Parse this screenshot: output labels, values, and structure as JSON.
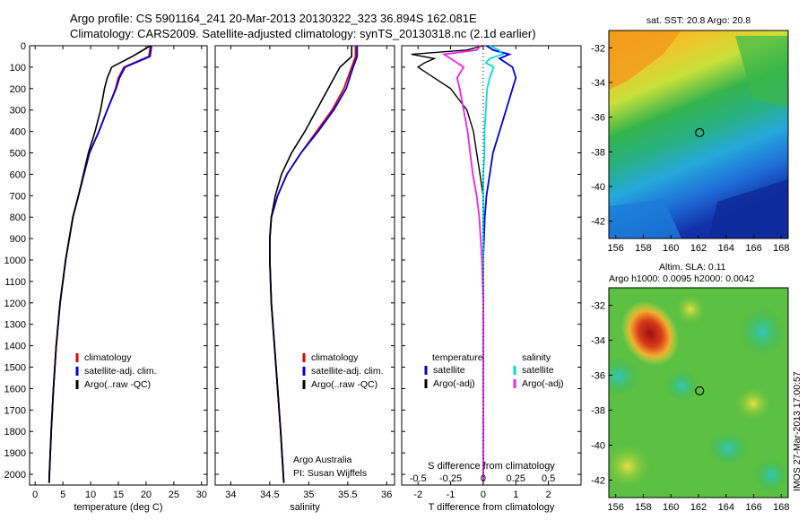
{
  "title_line1": "Argo profile: CS 5901164_241 20-Mar-2013 20130322_323 36.894S 162.081E",
  "title_line2": "Climatology: CARS2009. Satellite-adjusted climatology: synTS_20130318.nc (2.1d earlier)",
  "credit": {
    "line1": "Argo Australia",
    "line2": "PI: Susan Wijffels",
    "stamp": "IMOS 27-Mar-2013 17:00:57"
  },
  "colors": {
    "climatology": "#e00000",
    "satellite": "#0000dd",
    "argo": "#000000",
    "sal_sat": "#00dddd",
    "sal_argo": "#ee22ee"
  },
  "chart_data": [
    {
      "type": "line",
      "xlabel": "temperature (deg C)",
      "xlim": [
        -1,
        31
      ],
      "ylim": [
        0,
        2050
      ],
      "xticks": [
        0,
        5,
        10,
        15,
        20,
        25,
        30
      ],
      "yticks": [
        0,
        100,
        200,
        300,
        400,
        500,
        600,
        700,
        800,
        900,
        1000,
        1100,
        1200,
        1300,
        1400,
        1500,
        1600,
        1700,
        1800,
        1900,
        2000
      ],
      "legend": [
        "climatology",
        "satellite-adj. clim.",
        "Argo(..raw -QC)"
      ],
      "legend_placement": "lower-right",
      "depth": [
        0,
        50,
        100,
        150,
        200,
        300,
        400,
        500,
        600,
        700,
        800,
        1000,
        1200,
        1400,
        1600,
        1800,
        2040
      ],
      "series": [
        {
          "name": "climatology",
          "values": [
            20.8,
            20.5,
            16.0,
            15.0,
            14.5,
            13.0,
            11.5,
            9.8,
            8.8,
            7.8,
            6.8,
            5.5,
            4.5,
            3.8,
            3.3,
            2.9,
            2.5
          ]
        },
        {
          "name": "satellite-adj. clim.",
          "values": [
            21.0,
            20.7,
            16.2,
            15.2,
            14.6,
            13.0,
            11.5,
            9.8,
            8.8,
            7.8,
            6.8,
            5.5,
            4.5,
            3.8,
            3.3,
            2.9,
            2.5
          ]
        },
        {
          "name": "Argo(..raw -QC)",
          "values": [
            20.8,
            17.5,
            13.8,
            13.0,
            12.5,
            11.8,
            10.8,
            9.6,
            8.7,
            7.8,
            6.8,
            5.5,
            4.5,
            3.8,
            3.3,
            2.9,
            2.5
          ]
        }
      ]
    },
    {
      "type": "line",
      "xlabel": "salinity",
      "xlim": [
        33.8,
        36.1
      ],
      "ylim": [
        0,
        2050
      ],
      "xticks": [
        34,
        34.5,
        35,
        35.5,
        36
      ],
      "legend": [
        "climatology",
        "satellite-adj. clim.",
        "Argo(..raw -QC)"
      ],
      "legend_placement": "lower-right",
      "depth": [
        0,
        50,
        100,
        200,
        300,
        400,
        500,
        600,
        700,
        800,
        900,
        1000,
        1200,
        1400,
        1600,
        1800,
        2040
      ],
      "series": [
        {
          "name": "climatology",
          "values": [
            35.6,
            35.6,
            35.55,
            35.45,
            35.3,
            35.1,
            34.9,
            34.72,
            34.6,
            34.52,
            34.5,
            34.5,
            34.52,
            34.56,
            34.6,
            34.64,
            34.68
          ]
        },
        {
          "name": "satellite-adj. clim.",
          "values": [
            35.62,
            35.62,
            35.57,
            35.48,
            35.32,
            35.12,
            34.9,
            34.72,
            34.6,
            34.52,
            34.5,
            34.5,
            34.52,
            34.56,
            34.6,
            34.64,
            34.68
          ]
        },
        {
          "name": "Argo(..raw -QC)",
          "values": [
            35.55,
            35.55,
            35.4,
            35.25,
            35.1,
            34.95,
            34.78,
            34.65,
            34.57,
            34.52,
            34.5,
            34.5,
            34.52,
            34.56,
            34.6,
            34.64,
            34.68
          ]
        }
      ]
    },
    {
      "type": "line",
      "xlabel": "T difference from climatology",
      "top_axis_label": "S difference from climatology",
      "xlim": [
        -2.5,
        3
      ],
      "ylim": [
        0,
        2050
      ],
      "xticks": [
        -2,
        -1,
        0,
        1,
        2
      ],
      "xticks_top": [
        -0.5,
        -0.25,
        0,
        0.25,
        0.5
      ],
      "legend_headers": [
        "temperature",
        "salinity"
      ],
      "legend": [
        "satellite",
        "Argo(-adj)",
        "satellite",
        "Argo(-adj)"
      ],
      "legend_placement": "lower-center",
      "depth": [
        0,
        20,
        40,
        60,
        80,
        100,
        150,
        200,
        300,
        400,
        500,
        600,
        700,
        800,
        1000,
        1200,
        1400,
        1600,
        1800,
        2040
      ],
      "series": [
        {
          "name": "temperature satellite",
          "values": [
            0.1,
            0.3,
            0.8,
            0.5,
            0.7,
            0.9,
            1.0,
            0.9,
            0.7,
            0.5,
            0.3,
            0.2,
            0.1,
            0.05,
            0.0,
            0.0,
            0.0,
            0.0,
            0.0,
            0.0
          ]
        },
        {
          "name": "temperature Argo(-adj)",
          "values": [
            0.0,
            -0.5,
            -2.2,
            -1.5,
            -1.8,
            -2.0,
            -1.5,
            -1.0,
            -0.5,
            -0.3,
            -0.2,
            -0.1,
            0.0,
            0.0,
            0.0,
            0.0,
            0.0,
            0.0,
            0.0,
            0.0
          ]
        },
        {
          "name": "salinity satellite",
          "values": [
            0.05,
            0.12,
            0.15,
            0.05,
            0.02,
            0.08,
            0.05,
            0.03,
            0.02,
            0.01,
            0.01,
            0.0,
            0.0,
            0.0,
            0.0,
            0.0,
            0.0,
            0.0,
            0.0,
            0.0
          ]
        },
        {
          "name": "salinity Argo(-adj)",
          "values": [
            -0.02,
            -0.05,
            -0.3,
            -0.25,
            -0.2,
            -0.15,
            -0.2,
            -0.18,
            -0.15,
            -0.12,
            -0.1,
            -0.08,
            -0.05,
            -0.03,
            -0.01,
            0.0,
            0.0,
            0.0,
            0.0,
            0.0
          ]
        }
      ]
    },
    {
      "type": "heatmap",
      "title": "sat. SST: 20.8 Argo: 20.8",
      "xlim": [
        155.5,
        168.5
      ],
      "ylim": [
        -43,
        -31
      ],
      "xticks": [
        156,
        158,
        160,
        162,
        164,
        166,
        168
      ],
      "yticks": [
        -32,
        -34,
        -36,
        -38,
        -40,
        -42
      ],
      "marker": {
        "lon": 162.081,
        "lat": -36.894
      }
    },
    {
      "type": "heatmap",
      "title": "Altim. SLA: 0.11",
      "subtitle": "Argo h1000: 0.0095 h2000: 0.0042",
      "xlim": [
        155.5,
        168.5
      ],
      "ylim": [
        -43,
        -31
      ],
      "xticks": [
        156,
        158,
        160,
        162,
        164,
        166,
        168
      ],
      "yticks": [
        -32,
        -34,
        -36,
        -38,
        -40,
        -42
      ],
      "marker": {
        "lon": 162.081,
        "lat": -36.894
      }
    }
  ]
}
